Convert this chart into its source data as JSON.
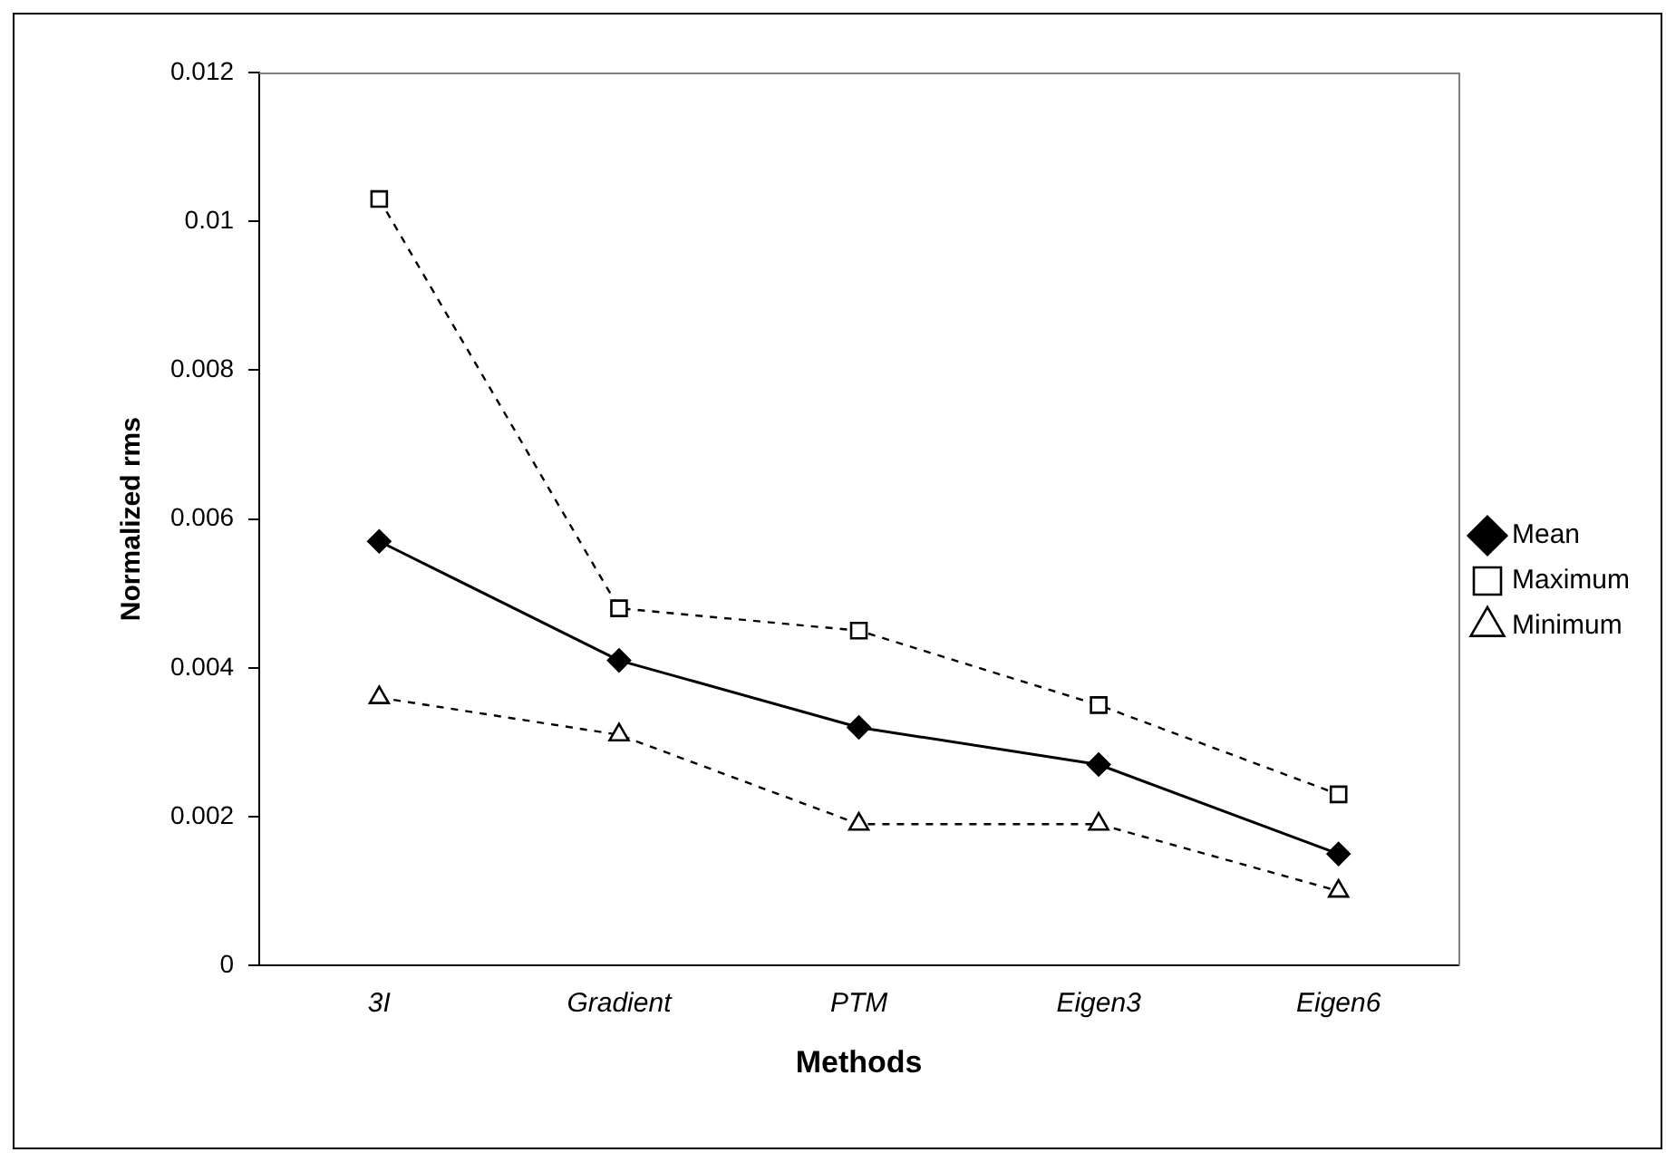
{
  "chart_data": {
    "type": "line",
    "xlabel": "Methods",
    "ylabel": "Normalized rms",
    "categories": [
      "3I",
      "Gradient",
      "PTM",
      "Eigen3",
      "Eigen6"
    ],
    "ylim": [
      0,
      0.012
    ],
    "yticks": [
      0,
      0.002,
      0.004,
      0.006,
      0.008,
      0.01,
      0.012
    ],
    "grid": false,
    "legend": "right",
    "series": [
      {
        "name": "Mean",
        "color": "#000000",
        "values": [
          0.0057,
          0.0041,
          0.0032,
          0.0027,
          0.0015
        ],
        "marker": "diamond",
        "line_style": "solid"
      },
      {
        "name": "Maximum",
        "color": "#000000",
        "values": [
          0.0103,
          0.0048,
          0.0045,
          0.0035,
          0.0023
        ],
        "marker": "square",
        "line_style": "dashed"
      },
      {
        "name": "Minimum",
        "color": "#000000",
        "values": [
          0.0036,
          0.0031,
          0.0019,
          0.0019,
          0.001
        ],
        "marker": "triangle",
        "line_style": "dashed"
      }
    ]
  }
}
